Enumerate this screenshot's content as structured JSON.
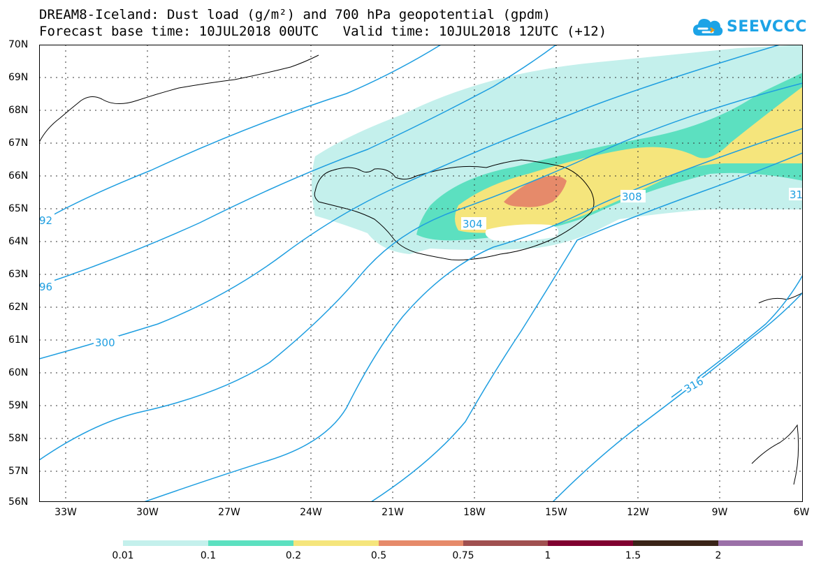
{
  "title": {
    "line1": "DREAM8-Iceland: Dust load (g/m²) and 700 hPa geopotential (gpdm)",
    "line2": "Forecast base time: 10JUL2018 00UTC   Valid time: 10JUL2018 12UTC (+12)"
  },
  "logo": {
    "text": "SEEVCCC",
    "icon": "cloud-logo-icon",
    "color": "#1ca3e6"
  },
  "latitude_labels": [
    "70N",
    "69N",
    "68N",
    "67N",
    "66N",
    "65N",
    "64N",
    "63N",
    "62N",
    "61N",
    "60N",
    "59N",
    "58N",
    "57N",
    "56N"
  ],
  "longitude_labels": [
    "33W",
    "30W",
    "27W",
    "24W",
    "21W",
    "18W",
    "15W",
    "12W",
    "9W",
    "6W"
  ],
  "contours": {
    "color": "#1e9ee0",
    "labels": [
      "92",
      "96",
      "300",
      "304",
      "308",
      "316",
      "31"
    ]
  },
  "colorbar": {
    "colors": [
      "#c4f0ec",
      "#5ce0c0",
      "#f5e57c",
      "#e68a6a",
      "#a05050",
      "#800030",
      "#3a2418",
      "#9b70a8"
    ],
    "labels": [
      "0.01",
      "0.1",
      "0.2",
      "0.5",
      "0.75",
      "1",
      "1.5",
      "2"
    ]
  }
}
